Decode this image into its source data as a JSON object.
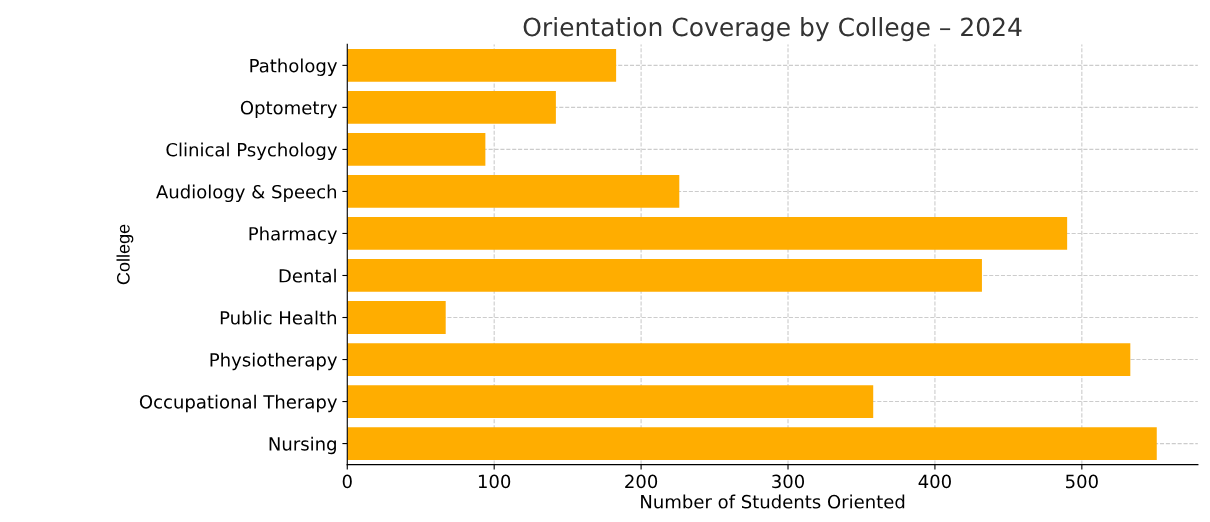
{
  "chart_data": {
    "type": "bar",
    "orientation": "horizontal",
    "title": "Orientation Coverage by College – 2024",
    "xlabel": "Number of Students Oriented",
    "ylabel": "College",
    "categories": [
      "Pathology",
      "Optometry",
      "Clinical Psychology",
      "Audiology & Speech",
      "Pharmacy",
      "Dental",
      "Public Health",
      "Physiotherapy",
      "Occupational Therapy",
      "Nursing"
    ],
    "values": [
      183,
      142,
      94,
      226,
      490,
      432,
      67,
      533,
      358,
      551
    ],
    "color": "#ffad00",
    "xlim": [
      0,
      579
    ],
    "xticks": [
      0,
      100,
      200,
      300,
      400,
      500
    ],
    "grid": true
  }
}
